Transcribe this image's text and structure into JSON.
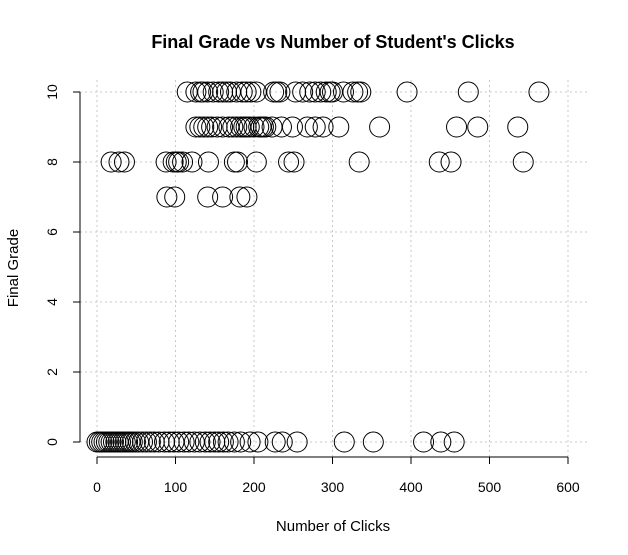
{
  "chart_data": {
    "type": "scatter",
    "title": "Final Grade vs Number of Student's Clicks",
    "xlabel": "Number of Clicks",
    "ylabel": "Final Grade",
    "xlim": [
      0,
      600
    ],
    "ylim": [
      0,
      10
    ],
    "x_ticks": [
      0,
      100,
      200,
      300,
      400,
      500,
      600
    ],
    "y_ticks": [
      0,
      2,
      4,
      6,
      8,
      10
    ],
    "grid": true,
    "marker": "open-circle",
    "color": "#000000",
    "series": [
      {
        "x": [
          115,
          126,
          132,
          135,
          141,
          148,
          155,
          160,
          165,
          170,
          178,
          185,
          190,
          196,
          203,
          225,
          229,
          233,
          253,
          262,
          271,
          278,
          285,
          292,
          297,
          300,
          314,
          326,
          332,
          336,
          395,
          473,
          563,
          126,
          131,
          136,
          141,
          146,
          153,
          160,
          168,
          173,
          178,
          183,
          187,
          190,
          194,
          200,
          206,
          209,
          212,
          215,
          223,
          235,
          249,
          268,
          278,
          288,
          308,
          360,
          458,
          485,
          536,
          18,
          28,
          35,
          88,
          97,
          101,
          104,
          109,
          121,
          142,
          175,
          179,
          203,
          244,
          251,
          334,
          436,
          451,
          543,
          89,
          99,
          141,
          160,
          182,
          191,
          0,
          3,
          6,
          9,
          12,
          15,
          18,
          21,
          24,
          27,
          30,
          33,
          36,
          39,
          42,
          45,
          49,
          53,
          58,
          63,
          68,
          73,
          79,
          86,
          92,
          98,
          104,
          111,
          117,
          124,
          131,
          138,
          144,
          150,
          155,
          161,
          167,
          175,
          183,
          195,
          205,
          227,
          236,
          255,
          315,
          352,
          416,
          438,
          455
        ],
        "y": [
          10,
          10,
          10,
          10,
          10,
          10,
          10,
          10,
          10,
          10,
          10,
          10,
          10,
          10,
          10,
          10,
          10,
          10,
          10,
          10,
          10,
          10,
          10,
          10,
          10,
          10,
          10,
          10,
          10,
          10,
          10,
          10,
          10,
          9,
          9,
          9,
          9,
          9,
          9,
          9,
          9,
          9,
          9,
          9,
          9,
          9,
          9,
          9,
          9,
          9,
          9,
          9,
          9,
          9,
          9,
          9,
          9,
          9,
          9,
          9,
          9,
          9,
          9,
          8,
          8,
          8,
          8,
          8,
          8,
          8,
          8,
          8,
          8,
          8,
          8,
          8,
          8,
          8,
          8,
          8,
          8,
          8,
          7,
          7,
          7,
          7,
          7,
          7,
          0,
          0,
          0,
          0,
          0,
          0,
          0,
          0,
          0,
          0,
          0,
          0,
          0,
          0,
          0,
          0,
          0,
          0,
          0,
          0,
          0,
          0,
          0,
          0,
          0,
          0,
          0,
          0,
          0,
          0,
          0,
          0,
          0,
          0,
          0,
          0,
          0,
          0,
          0,
          0,
          0,
          0,
          0,
          0,
          0,
          0,
          0,
          0,
          0
        ]
      }
    ]
  }
}
